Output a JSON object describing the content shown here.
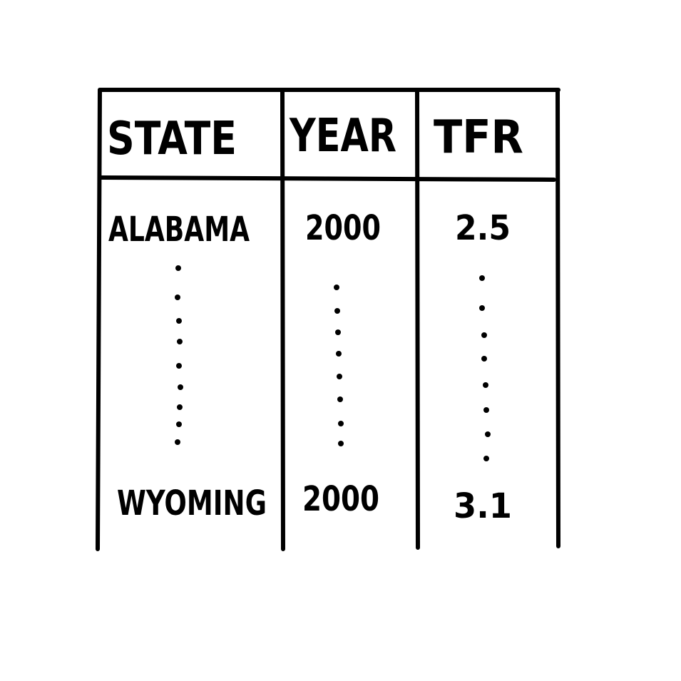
{
  "table": {
    "headers": {
      "state": "STATE",
      "year": "YEAR",
      "tfr": "TFR"
    },
    "rows": [
      {
        "state": "ALABAMA",
        "year": "2000",
        "tfr": "2.5"
      },
      {
        "state": "WYOMING",
        "year": "2000",
        "tfr": "3.1"
      }
    ]
  },
  "colors": {
    "ink": "#000000",
    "paper": "#ffffff"
  }
}
